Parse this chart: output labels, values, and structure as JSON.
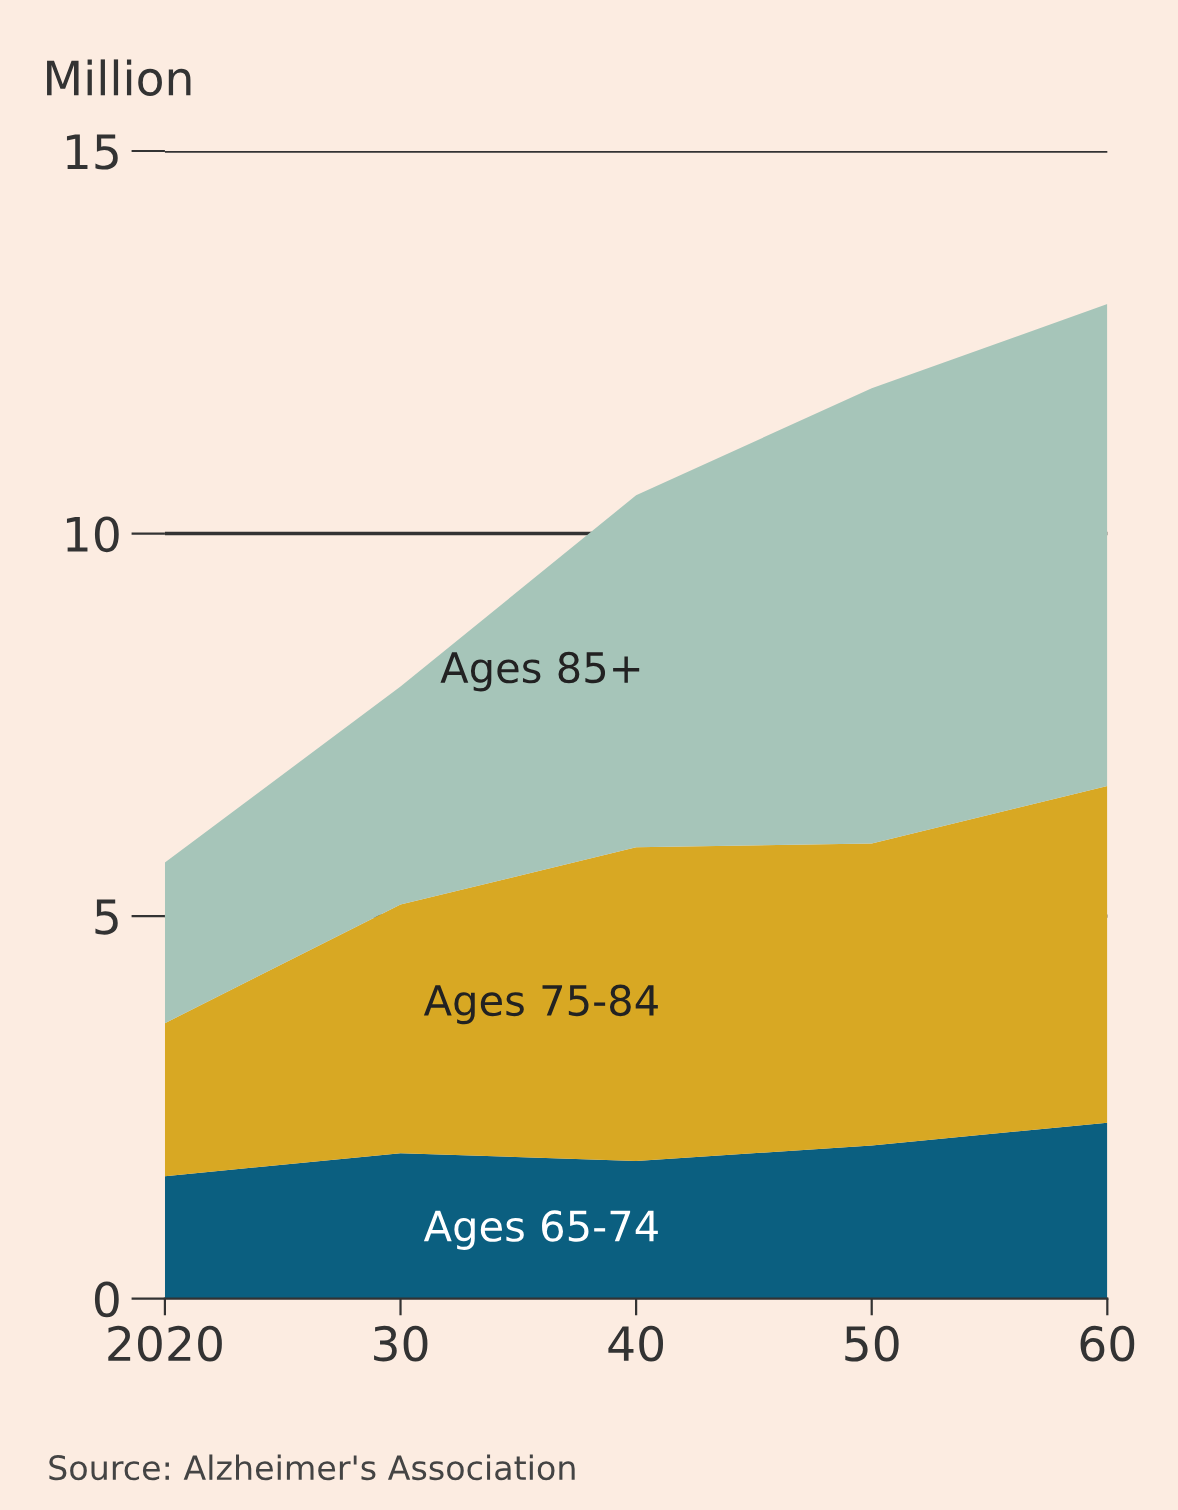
{
  "chart_data": {
    "type": "area",
    "stacked": true,
    "ylabel": "Million",
    "x": [
      2020,
      2030,
      2040,
      2050,
      2060
    ],
    "series": [
      {
        "name": "Ages 65-74",
        "color": "#0b5f80",
        "values": [
          1.6,
          1.9,
          1.8,
          2.0,
          2.3
        ]
      },
      {
        "name": "Ages 75-84",
        "color": "#d8a823",
        "values": [
          2.0,
          3.25,
          4.1,
          3.95,
          4.4
        ]
      },
      {
        "name": "Ages 85+",
        "color": "#a6c5b9",
        "values": [
          2.1,
          2.85,
          4.6,
          5.95,
          6.3
        ]
      }
    ],
    "xlim": [
      2020,
      2060
    ],
    "xticks": [
      {
        "value": 2020,
        "label": "2020"
      },
      {
        "value": 2030,
        "label": "30"
      },
      {
        "value": 2040,
        "label": "40"
      },
      {
        "value": 2050,
        "label": "50"
      },
      {
        "value": 2060,
        "label": "60"
      }
    ],
    "ylim": [
      0,
      15
    ],
    "yticks": [
      0,
      5,
      10,
      15
    ],
    "grid": "y",
    "legend": false,
    "annotations": [
      "Source: Alzheimer's Association"
    ]
  }
}
